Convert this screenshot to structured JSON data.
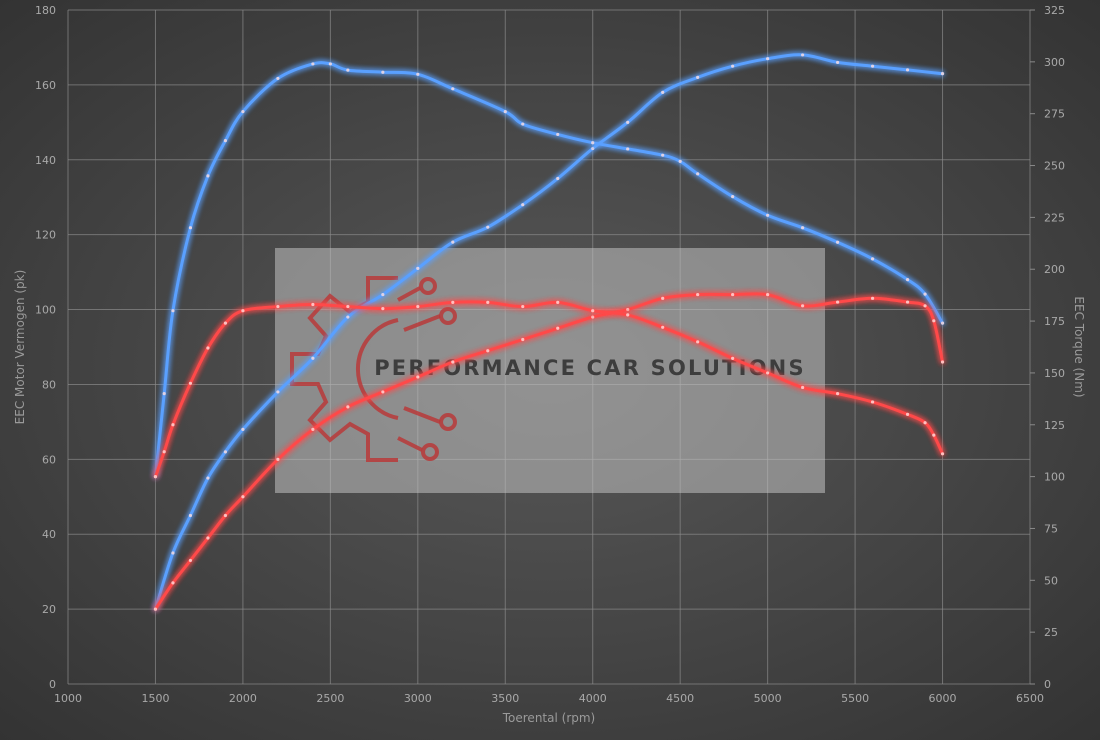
{
  "chart_data": {
    "type": "line",
    "title": "",
    "xlabel": "Toerental (rpm)",
    "ylabel_left": "EEC Motor Vermogen (pk)",
    "ylabel_right": "EEC Torque (Nm)",
    "xlim": [
      1000,
      6500
    ],
    "xticks": [
      1000,
      1500,
      2000,
      2500,
      3000,
      3500,
      4000,
      4500,
      5000,
      5500,
      6000,
      6500
    ],
    "ylim_left": [
      0,
      180
    ],
    "yticks_left": [
      0,
      20,
      40,
      60,
      80,
      100,
      120,
      140,
      160,
      180
    ],
    "ylim_right": [
      0,
      325
    ],
    "yticks_right": [
      0,
      25,
      50,
      75,
      100,
      125,
      150,
      175,
      200,
      225,
      250,
      275,
      300,
      325
    ],
    "grid": true,
    "colors": {
      "tuned": "#5aa0ff",
      "stock": "#ff4a4a"
    },
    "series": [
      {
        "name": "",
        "kind": "power",
        "color_key": "tuned",
        "axis": "left",
        "x": [
          1500,
          1600,
          1700,
          1800,
          1900,
          2000,
          2200,
          2400,
          2600,
          2800,
          3000,
          3200,
          3400,
          3600,
          3800,
          4000,
          4200,
          4400,
          4600,
          4800,
          5000,
          5200,
          5400,
          5600,
          5800,
          6000
        ],
        "values": [
          20,
          35,
          45,
          55,
          62,
          68,
          78,
          87,
          98,
          104,
          111,
          118,
          122,
          128,
          135,
          143,
          150,
          158,
          162,
          165,
          167,
          168,
          166,
          165,
          164,
          163
        ]
      },
      {
        "name": "",
        "kind": "torque",
        "color_key": "tuned",
        "axis": "right",
        "x": [
          1500,
          1550,
          1600,
          1700,
          1800,
          1900,
          2000,
          2200,
          2400,
          2500,
          2600,
          2800,
          3000,
          3200,
          3500,
          3600,
          3800,
          4000,
          4200,
          4400,
          4500,
          4600,
          4800,
          5000,
          5200,
          5400,
          5600,
          5800,
          5900,
          6000
        ],
        "values": [
          100,
          140,
          180,
          220,
          245,
          262,
          276,
          292,
          299,
          299,
          296,
          295,
          294,
          287,
          276,
          270,
          265,
          261,
          258,
          255,
          252,
          246,
          235,
          226,
          220,
          213,
          205,
          195,
          188,
          174
        ]
      },
      {
        "name": "",
        "kind": "power",
        "color_key": "stock",
        "axis": "left",
        "x": [
          1500,
          1600,
          1700,
          1800,
          1900,
          2000,
          2200,
          2400,
          2600,
          2800,
          3000,
          3200,
          3400,
          3600,
          3800,
          4000,
          4200,
          4400,
          4600,
          4800,
          5000,
          5200,
          5400,
          5600,
          5800,
          5900,
          5950,
          6000
        ],
        "values": [
          20,
          27,
          33,
          39,
          45,
          50,
          60,
          68,
          74,
          78,
          82,
          86,
          89,
          92,
          95,
          98,
          100,
          103,
          104,
          104,
          104,
          101,
          102,
          103,
          102,
          101,
          97,
          86
        ]
      },
      {
        "name": "",
        "kind": "torque",
        "color_key": "stock",
        "axis": "right",
        "x": [
          1500,
          1550,
          1600,
          1700,
          1800,
          1900,
          2000,
          2200,
          2400,
          2600,
          2800,
          3000,
          3200,
          3400,
          3600,
          3800,
          4000,
          4200,
          4400,
          4600,
          4800,
          5000,
          5200,
          5400,
          5600,
          5800,
          5900,
          5950,
          6000
        ],
        "values": [
          100,
          112,
          125,
          145,
          162,
          174,
          180,
          182,
          183,
          182,
          181,
          182,
          184,
          184,
          182,
          184,
          180,
          178,
          172,
          165,
          157,
          150,
          143,
          140,
          136,
          130,
          126,
          120,
          111
        ]
      }
    ]
  },
  "watermark": {
    "text": "PERFORMANCE CAR SOLUTIONS",
    "logo": "gear-circuit-icon",
    "logo_color": "#b83a3a"
  }
}
